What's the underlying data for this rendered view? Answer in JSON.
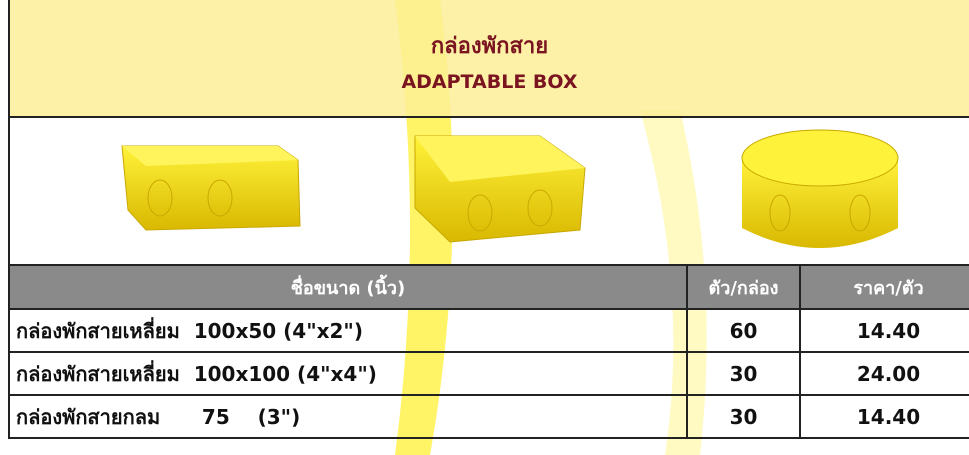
{
  "header": {
    "title": "กล่องพักสาย",
    "subtitle": "ADAPTABLE BOX"
  },
  "table": {
    "columns": [
      "ชื่อขนาด (นิ้ว)",
      "ตัว/กล่อง",
      "ราคา/ตัว"
    ],
    "rows": [
      [
        "กล่องพักสายเหลี่ยม  100x50 (4\"x2\")",
        "60",
        "14.40"
      ],
      [
        "กล่องพักสายเหลี่ยม  100x100 (4\"x4\")",
        "30",
        "24.00"
      ],
      [
        "กล่องพักสายกลม      75    (3\")",
        "30",
        "14.40"
      ]
    ]
  }
}
